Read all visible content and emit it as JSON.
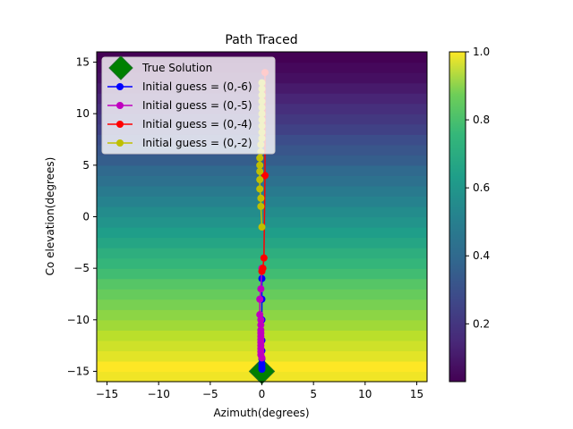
{
  "chart_data": {
    "type": "heatmap",
    "title": "Path Traced",
    "xlabel": "Azimuth(degrees)",
    "ylabel": "Co elevation(degrees)",
    "xlim": [
      -16,
      16
    ],
    "ylim": [
      -16,
      16
    ],
    "xticks": [
      -15,
      -10,
      -5,
      0,
      5,
      10,
      15
    ],
    "yticks": [
      -15,
      -10,
      -5,
      0,
      5,
      10,
      15
    ],
    "colormap": "viridis",
    "colorbar": {
      "min": 0.03,
      "max": 1.0,
      "ticks": [
        0.2,
        0.4,
        0.6,
        0.8,
        1.0
      ],
      "tick_labels": [
        "0.2",
        "0.4",
        "0.6",
        "0.8",
        "1.0"
      ]
    },
    "heatmap_rows": {
      "elevation_edges": [
        -16,
        -15,
        -14,
        -13,
        -12,
        -11,
        -10,
        -9,
        -8,
        -7,
        -6,
        -5,
        -4,
        -3,
        -2,
        -1,
        0,
        1,
        2,
        3,
        4,
        5,
        6,
        7,
        8,
        9,
        10,
        11,
        12,
        13,
        14,
        15,
        16
      ],
      "values": [
        0.98,
        1.0,
        0.96,
        0.93,
        0.9,
        0.86,
        0.83,
        0.8,
        0.77,
        0.74,
        0.7,
        0.67,
        0.64,
        0.6,
        0.57,
        0.53,
        0.5,
        0.46,
        0.43,
        0.39,
        0.36,
        0.32,
        0.29,
        0.26,
        0.22,
        0.19,
        0.16,
        0.13,
        0.1,
        0.07,
        0.05,
        0.03
      ]
    },
    "legend_position": "top-left",
    "series": [
      {
        "name": "True Solution",
        "color": "#008000",
        "marker": "diamond",
        "x": [
          0
        ],
        "y": [
          -15
        ]
      },
      {
        "name": "Initial guess = (0,-6)",
        "color": "#0000ff",
        "marker": "circle",
        "x": [
          0,
          0,
          0,
          0,
          0,
          0,
          0,
          0,
          0
        ],
        "y": [
          -6,
          -8,
          -10,
          -12,
          -13,
          -13.8,
          -14.3,
          -14.6,
          -14.8
        ]
      },
      {
        "name": "Initial guess = (0,-5)",
        "color": "#bf00bf",
        "marker": "circle",
        "x": [
          0,
          -0.1,
          -0.2,
          -0.2,
          -0.1,
          -0.1,
          -0.1,
          -0.1,
          -0.1,
          -0.1,
          -0.1,
          -0.1,
          -0.1,
          -0.1,
          -0.1,
          0
        ],
        "y": [
          -5,
          -7,
          -8,
          -9.5,
          -10,
          -10.5,
          -11,
          -11.3,
          -11.6,
          -11.9,
          -12.2,
          -12.5,
          -12.8,
          -13.1,
          -13.4,
          -13.7
        ]
      },
      {
        "name": "Initial guess = (0,-4)",
        "color": "#ff0000",
        "marker": "circle",
        "x": [
          0.3,
          0.3,
          0.2,
          0.1,
          0
        ],
        "y": [
          14,
          4,
          -4,
          -5,
          -5.3
        ]
      },
      {
        "name": "Initial guess = (0,-2)",
        "color": "#bfbf00",
        "marker": "circle",
        "x": [
          0,
          -0.1,
          -0.1,
          -0.2,
          -0.2,
          -0.2,
          -0.2,
          -0.2,
          -0.1,
          -0.1,
          0,
          0,
          0,
          0,
          0,
          0,
          0,
          0,
          0,
          0
        ],
        "y": [
          -1,
          1,
          1.8,
          2.7,
          3.6,
          4.4,
          5.0,
          5.7,
          6.3,
          7.0,
          7.6,
          8.2,
          8.8,
          9.4,
          10.0,
          10.6,
          11.2,
          11.8,
          12.4,
          13.0
        ]
      }
    ]
  }
}
